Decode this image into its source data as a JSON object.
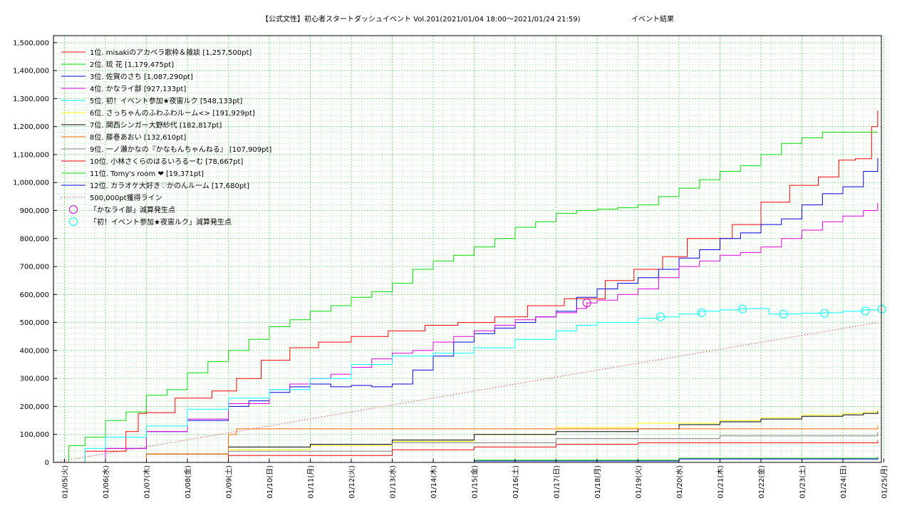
{
  "chart_data": {
    "type": "line",
    "title": "【公式文性】初心者スタートダッシュイベント Vol.201(2021/01/04 18:00～2021/01/24 21:59)",
    "subtitle": "イベント結果",
    "ylim": [
      0,
      1525000
    ],
    "xlim": [
      0,
      20.15
    ],
    "y_ticks": [
      {
        "value": 0,
        "label": "0"
      },
      {
        "value": 100000,
        "label": "100,000"
      },
      {
        "value": 200000,
        "label": "200,000"
      },
      {
        "value": 300000,
        "label": "300,000"
      },
      {
        "value": 400000,
        "label": "400,000"
      },
      {
        "value": 500000,
        "label": "500,000"
      },
      {
        "value": 600000,
        "label": "600,000"
      },
      {
        "value": 700000,
        "label": "700,000"
      },
      {
        "value": 800000,
        "label": "800,000"
      },
      {
        "value": 900000,
        "label": "900,000"
      },
      {
        "value": 1000000,
        "label": "1,000,000"
      },
      {
        "value": 1100000,
        "label": "1,100,000"
      },
      {
        "value": 1200000,
        "label": "1,200,000"
      },
      {
        "value": 1300000,
        "label": "1,300,000"
      },
      {
        "value": 1400000,
        "label": "1,400,000"
      },
      {
        "value": 1500000,
        "label": "1,500,000"
      }
    ],
    "x_ticks": [
      {
        "value": 0,
        "label": "01/05(火)"
      },
      {
        "value": 1,
        "label": "01/06(水)"
      },
      {
        "value": 2,
        "label": "01/07(木)"
      },
      {
        "value": 3,
        "label": "01/08(金)"
      },
      {
        "value": 4,
        "label": "01/09(土)"
      },
      {
        "value": 5,
        "label": "01/10(日)"
      },
      {
        "value": 6,
        "label": "01/11(月)"
      },
      {
        "value": 7,
        "label": "01/12(火)"
      },
      {
        "value": 8,
        "label": "01/13(水)"
      },
      {
        "value": 9,
        "label": "01/14(木)"
      },
      {
        "value": 10,
        "label": "01/15(金)"
      },
      {
        "value": 11,
        "label": "01/16(土)"
      },
      {
        "value": 12,
        "label": "01/17(日)"
      },
      {
        "value": 13,
        "label": "01/18(月)"
      },
      {
        "value": 14,
        "label": "01/19(火)"
      },
      {
        "value": 15,
        "label": "01/20(水)"
      },
      {
        "value": 16,
        "label": "01/21(木)"
      },
      {
        "value": 17,
        "label": "01/22(金)"
      },
      {
        "value": 18,
        "label": "01/23(土)"
      },
      {
        "value": 19,
        "label": "01/24(日)"
      },
      {
        "value": 20,
        "label": "01/25(月)"
      }
    ],
    "grid": true,
    "legend_position": "top-left",
    "series": [
      {
        "name": "1位. misakiのアカペラ歌枠＆雑談 [1,257,500pt]",
        "color": "#ff0000",
        "x": [
          -0.25,
          0.5,
          1.5,
          1.8,
          2,
          2.7,
          3.6,
          4.2,
          4.8,
          5.5,
          6.2,
          7.0,
          7.9,
          8.8,
          9.6,
          10.5,
          11.3,
          12.2,
          13.2,
          13.9,
          14.6,
          15.2,
          16.3,
          17.0,
          17.7,
          18.4,
          18.9,
          19.3,
          19.7,
          19.85
        ],
        "y": [
          0,
          40000,
          110000,
          175000,
          178000,
          230000,
          255000,
          300000,
          365000,
          410000,
          430000,
          450000,
          470000,
          490000,
          500000,
          520000,
          560000,
          585000,
          650000,
          690000,
          735000,
          800000,
          850000,
          930000,
          990000,
          1020000,
          1080000,
          1085000,
          1200000,
          1257500
        ]
      },
      {
        "name": "2位. 琉 花 [1,179,475pt]",
        "color": "#00dd00",
        "x": [
          -0.25,
          0.1,
          0.5,
          1.0,
          1.5,
          2.0,
          2.5,
          3.0,
          3.5,
          4.0,
          4.5,
          5.0,
          5.5,
          6.0,
          6.5,
          7.0,
          7.5,
          8.0,
          8.5,
          9.0,
          9.5,
          10.0,
          10.5,
          11.0,
          11.5,
          12.0,
          12.5,
          13.0,
          13.5,
          14.0,
          14.5,
          15.0,
          15.5,
          16.0,
          16.5,
          17.0,
          17.5,
          18.0,
          18.5,
          19.0,
          19.5,
          19.85
        ],
        "y": [
          0,
          60000,
          90000,
          150000,
          180000,
          240000,
          260000,
          320000,
          360000,
          400000,
          440000,
          485000,
          510000,
          540000,
          560000,
          590000,
          610000,
          640000,
          690000,
          720000,
          740000,
          770000,
          800000,
          840000,
          860000,
          890000,
          900000,
          905000,
          910000,
          920000,
          950000,
          980000,
          1010000,
          1040000,
          1060000,
          1100000,
          1140000,
          1160000,
          1180000,
          1180000,
          1180000,
          1180000
        ]
      },
      {
        "name": "3位. 佐賀のさち [1,087,290pt]",
        "color": "#0000dd",
        "x": [
          -0.25,
          1.0,
          2.0,
          3.0,
          4.0,
          4.5,
          5.0,
          5.5,
          6.0,
          6.5,
          7.0,
          7.5,
          8.0,
          8.5,
          9.0,
          9.5,
          10.0,
          10.5,
          11.0,
          11.5,
          12.0,
          12.5,
          13.0,
          13.5,
          14.0,
          14.5,
          15.0,
          15.5,
          16.0,
          16.5,
          17.0,
          17.5,
          18.0,
          18.5,
          19.0,
          19.5,
          19.85
        ],
        "y": [
          0,
          50000,
          110000,
          150000,
          200000,
          220000,
          250000,
          270000,
          280000,
          270000,
          275000,
          270000,
          280000,
          330000,
          380000,
          430000,
          460000,
          480000,
          500000,
          520000,
          540000,
          590000,
          620000,
          640000,
          660000,
          690000,
          730000,
          760000,
          800000,
          820000,
          850000,
          870000,
          920000,
          960000,
          985000,
          1040000,
          1087290
        ]
      },
      {
        "name": "4位. かなライ部 [927,133pt]",
        "color": "#dd00dd",
        "x": [
          -0.25,
          1.0,
          2.0,
          3.0,
          4.0,
          5.0,
          5.5,
          6.0,
          6.5,
          7.0,
          7.5,
          8.0,
          8.5,
          9.0,
          9.5,
          10.0,
          10.5,
          11.0,
          11.5,
          12.0,
          12.5,
          12.75,
          13.0,
          13.5,
          14.0,
          14.5,
          15.0,
          15.5,
          16.0,
          16.5,
          17.0,
          17.5,
          18.0,
          18.5,
          19.0,
          19.5,
          19.85
        ],
        "y": [
          0,
          50000,
          110000,
          155000,
          210000,
          260000,
          280000,
          300000,
          315000,
          340000,
          370000,
          390000,
          400000,
          430000,
          450000,
          470000,
          490000,
          510000,
          520000,
          535000,
          550000,
          570000,
          580000,
          600000,
          620000,
          660000,
          700000,
          720000,
          740000,
          750000,
          770000,
          800000,
          830000,
          860000,
          880000,
          900000,
          927133
        ]
      },
      {
        "name": "5位. 初！イベント参加★夜宙ルク [548,133pt]",
        "color": "#00ffff",
        "x": [
          -0.25,
          0.5,
          1.0,
          2.0,
          3.0,
          4.0,
          5.0,
          6.0,
          7.0,
          8.0,
          9.0,
          10.0,
          11.0,
          12.0,
          12.5,
          13.0,
          14.0,
          14.5,
          15.0,
          15.5,
          16.0,
          16.5,
          17.0,
          17.2,
          18.0,
          18.5,
          19.0,
          19.5,
          19.85
        ],
        "y": [
          0,
          50000,
          90000,
          130000,
          190000,
          230000,
          260000,
          300000,
          350000,
          380000,
          390000,
          410000,
          440000,
          470000,
          490000,
          500000,
          515000,
          520000,
          530000,
          540000,
          545000,
          550000,
          550000,
          530000,
          533000,
          535000,
          540000,
          545000,
          548133
        ]
      },
      {
        "name": "6位. さっちゃんのふわふわルーム<> [191,929pt]",
        "color": "#ffff00",
        "x": [
          -0.25,
          2.0,
          4.0,
          6.0,
          8.0,
          10.0,
          12.0,
          14.0,
          16.0,
          17.0,
          18.0,
          19.0,
          19.5,
          19.85
        ],
        "y": [
          0,
          30000,
          45000,
          60000,
          75000,
          100000,
          125000,
          140000,
          150000,
          160000,
          170000,
          175000,
          180000,
          191929
        ]
      },
      {
        "name": "7位. 関西シンガー大野紗代 [182,817pt]",
        "color": "#000000",
        "x": [
          -0.25,
          2.0,
          4.0,
          6.0,
          8.0,
          10.0,
          12.0,
          14.0,
          15.0,
          16.0,
          17.0,
          18.0,
          19.0,
          19.5,
          19.85
        ],
        "y": [
          0,
          30000,
          55000,
          65000,
          80000,
          100000,
          110000,
          120000,
          135000,
          145000,
          155000,
          165000,
          170000,
          175000,
          182817
        ]
      },
      {
        "name": "8位. 藤巻あおい [132,610pt]",
        "color": "#ff6600",
        "x": [
          -0.25,
          2.0,
          4.0,
          4.2,
          19.85
        ],
        "y": [
          0,
          30000,
          100000,
          120000,
          132610
        ]
      },
      {
        "name": "9位. 一ノ瀬かなの『かなもんちゃんねる』 [107,909pt]",
        "color": "#808080",
        "x": [
          -0.25,
          4.0,
          8.0,
          12.0,
          16.0,
          19.85
        ],
        "y": [
          0,
          40000,
          70000,
          85000,
          95000,
          107909
        ]
      },
      {
        "name": "10位. 小林さくらのはるいろるーむ [78,667pt]",
        "color": "#ff0000",
        "x": [
          -0.25,
          4.0,
          8.0,
          10.0,
          12.0,
          14.0,
          19.85
        ],
        "y": [
          0,
          25000,
          45000,
          55000,
          65000,
          70000,
          78667
        ]
      },
      {
        "name": "11位. Tomy's room ❤ [19,371pt]",
        "color": "#00dd00",
        "x": [
          -0.25,
          10.0,
          15.0,
          19.85
        ],
        "y": [
          0,
          8000,
          15000,
          19371
        ]
      },
      {
        "name": "12位. カラオケ大好き♡かのんルーム [17,680pt]",
        "color": "#0000dd",
        "x": [
          -0.25,
          10.0,
          15.0,
          19.85
        ],
        "y": [
          0,
          5000,
          12000,
          17680
        ]
      }
    ],
    "reference_line": {
      "name": "500,000pt獲得ライン",
      "color": "#ff0000",
      "x": [
        -0.25,
        19.85
      ],
      "y": [
        0,
        500000
      ]
    },
    "markers": [
      {
        "name": "「かなライ部」減算発生点",
        "color": "#dd00dd",
        "points": [
          {
            "x": 12.75,
            "y": 570000
          }
        ]
      },
      {
        "name": "「初！イベント参加★夜宙ルク」減算発生点",
        "color": "#00ffff",
        "points": [
          {
            "x": 14.55,
            "y": 520000
          },
          {
            "x": 15.55,
            "y": 535000
          },
          {
            "x": 16.55,
            "y": 548000
          },
          {
            "x": 17.55,
            "y": 530000
          },
          {
            "x": 18.55,
            "y": 533000
          },
          {
            "x": 19.55,
            "y": 541000
          },
          {
            "x": 19.95,
            "y": 548133
          }
        ]
      }
    ]
  }
}
